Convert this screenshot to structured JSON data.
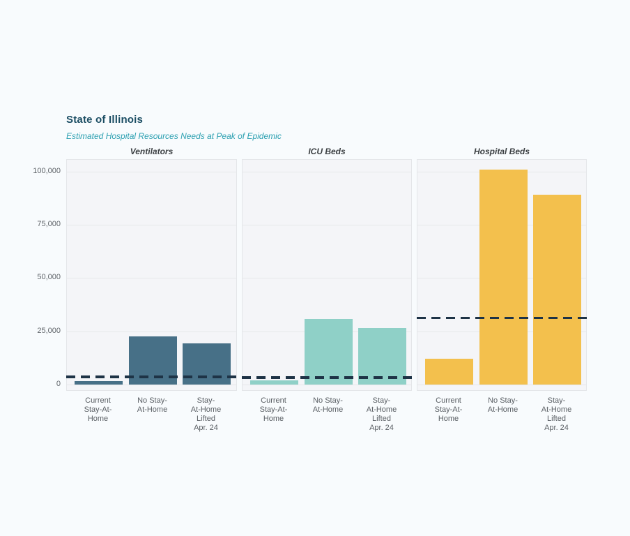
{
  "page": {
    "background": "#f8fbfd"
  },
  "chart_data": {
    "type": "bar",
    "title": "State of Illinois",
    "subtitle": "Estimated Hospital Resources Needs at Peak of Epidemic",
    "title_color": "#1b4d63",
    "subtitle_color": "#2ca0b1",
    "categories": [
      "Current Stay-At-Home",
      "No Stay-At-Home",
      "Stay-At-Home Lifted Apr. 24"
    ],
    "category_label_lines": [
      [
        "Current",
        "Stay-At-",
        "Home"
      ],
      [
        "No Stay-",
        "At-Home"
      ],
      [
        "Stay-",
        "At-Home",
        "Lifted",
        "Apr. 24"
      ]
    ],
    "panels": [
      {
        "label": "Ventilators",
        "values": [
          1700,
          22500,
          19200
        ],
        "capacity_line": 3700,
        "bar_color": "#477087"
      },
      {
        "label": "ICU Beds",
        "values": [
          1900,
          30700,
          26400
        ],
        "capacity_line": 3400,
        "bar_color": "#8fd0c7"
      },
      {
        "label": "Hospital Beds",
        "values": [
          12000,
          100800,
          89000
        ],
        "capacity_line": 31400,
        "bar_color": "#f3c04d"
      }
    ],
    "ylim": [
      0,
      105500
    ],
    "yticks": [
      {
        "value": 0,
        "label": "0"
      },
      {
        "value": 25000,
        "label": "25,000"
      },
      {
        "value": 50000,
        "label": "50,000"
      },
      {
        "value": 75000,
        "label": "75,000"
      },
      {
        "value": 100000,
        "label": "100,000"
      }
    ],
    "grid": true,
    "legend": "none",
    "capacity_line_color": "#1e3346",
    "panel_background": "#f4f5f8",
    "gridline_color": "#e6e8ea"
  }
}
